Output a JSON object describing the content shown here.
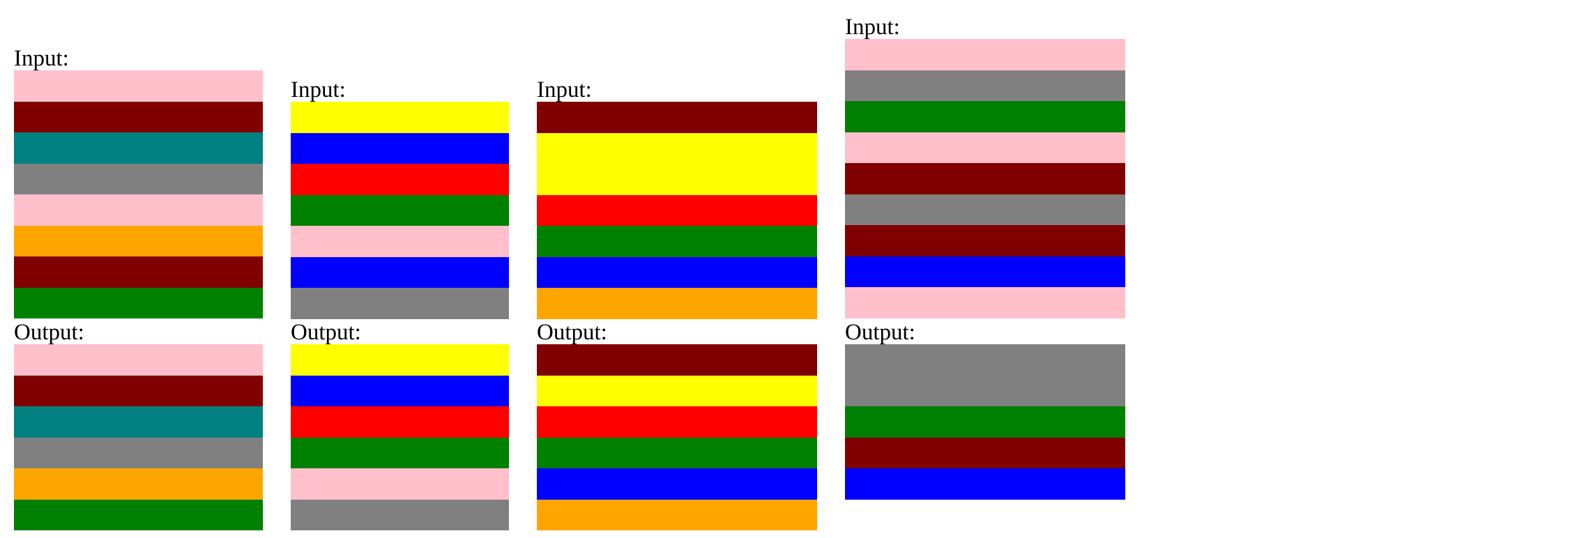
{
  "palette": {
    "pink": "#ffc0cb",
    "maroon": "#800000",
    "teal": "#008080",
    "gray": "#808080",
    "orange": "#ffa500",
    "green": "#008000",
    "yellow": "#ffff00",
    "blue": "#0000ff",
    "red": "#ff0000"
  },
  "examples": [
    {
      "input_label": "Input:",
      "output_label": "Output:",
      "input_bands": [
        {
          "color": "pink",
          "units": 1
        },
        {
          "color": "maroon",
          "units": 1
        },
        {
          "color": "teal",
          "units": 1
        },
        {
          "color": "gray",
          "units": 1
        },
        {
          "color": "pink",
          "units": 1
        },
        {
          "color": "orange",
          "units": 1
        },
        {
          "color": "maroon",
          "units": 1
        },
        {
          "color": "green",
          "units": 1
        }
      ],
      "output_bands": [
        {
          "color": "pink",
          "units": 1
        },
        {
          "color": "maroon",
          "units": 1
        },
        {
          "color": "teal",
          "units": 1
        },
        {
          "color": "gray",
          "units": 1
        },
        {
          "color": "orange",
          "units": 1
        },
        {
          "color": "green",
          "units": 1
        }
      ]
    },
    {
      "input_label": "Input:",
      "output_label": "Output:",
      "input_bands": [
        {
          "color": "yellow",
          "units": 1
        },
        {
          "color": "blue",
          "units": 1
        },
        {
          "color": "red",
          "units": 1
        },
        {
          "color": "green",
          "units": 1
        },
        {
          "color": "pink",
          "units": 1
        },
        {
          "color": "blue",
          "units": 1
        },
        {
          "color": "gray",
          "units": 1
        }
      ],
      "output_bands": [
        {
          "color": "yellow",
          "units": 1
        },
        {
          "color": "blue",
          "units": 1
        },
        {
          "color": "red",
          "units": 1
        },
        {
          "color": "green",
          "units": 1
        },
        {
          "color": "pink",
          "units": 1
        },
        {
          "color": "gray",
          "units": 1
        }
      ]
    },
    {
      "input_label": "Input:",
      "output_label": "Output:",
      "input_bands": [
        {
          "color": "maroon",
          "units": 1
        },
        {
          "color": "yellow",
          "units": 2
        },
        {
          "color": "red",
          "units": 1
        },
        {
          "color": "green",
          "units": 1
        },
        {
          "color": "blue",
          "units": 1
        },
        {
          "color": "orange",
          "units": 1
        }
      ],
      "output_bands": [
        {
          "color": "maroon",
          "units": 1
        },
        {
          "color": "yellow",
          "units": 1
        },
        {
          "color": "red",
          "units": 1
        },
        {
          "color": "green",
          "units": 1
        },
        {
          "color": "blue",
          "units": 1
        },
        {
          "color": "orange",
          "units": 1
        }
      ]
    },
    {
      "input_label": "Input:",
      "output_label": "Output:",
      "input_bands": [
        {
          "color": "pink",
          "units": 1
        },
        {
          "color": "gray",
          "units": 1
        },
        {
          "color": "green",
          "units": 1
        },
        {
          "color": "pink",
          "units": 1
        },
        {
          "color": "maroon",
          "units": 1
        },
        {
          "color": "gray",
          "units": 1
        },
        {
          "color": "maroon",
          "units": 1
        },
        {
          "color": "blue",
          "units": 1
        },
        {
          "color": "pink",
          "units": 1
        }
      ],
      "output_bands": [
        {
          "color": "gray",
          "units": 2
        },
        {
          "color": "green",
          "units": 1
        },
        {
          "color": "maroon",
          "units": 1
        },
        {
          "color": "blue",
          "units": 1
        }
      ]
    }
  ]
}
